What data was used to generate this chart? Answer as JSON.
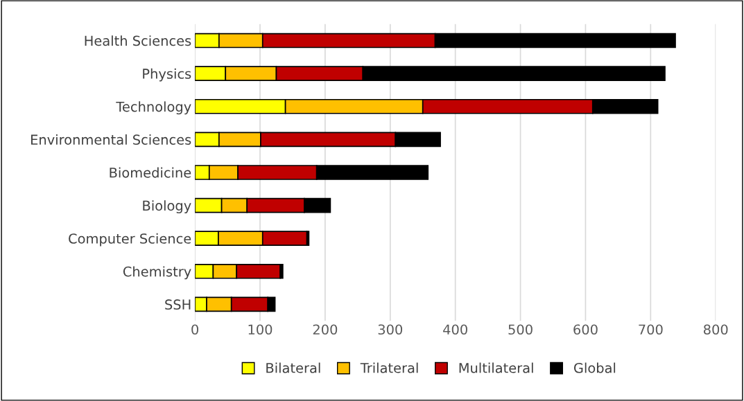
{
  "chart_data": {
    "type": "bar",
    "orientation": "horizontal",
    "stacked": true,
    "categories": [
      "Health Sciences",
      "Physics",
      "Technology",
      "Environmental Sciences",
      "Biomedicine",
      "Biology",
      "Computer Science",
      "Chemistry",
      "SSH"
    ],
    "series": [
      {
        "name": "Bilateral",
        "color": "#ffff00",
        "values": [
          37,
          47,
          139,
          37,
          22,
          41,
          36,
          28,
          18
        ]
      },
      {
        "name": "Trilateral",
        "color": "#ffc000",
        "values": [
          67,
          78,
          211,
          64,
          44,
          39,
          68,
          36,
          38
        ]
      },
      {
        "name": "Multilateral",
        "color": "#c00000",
        "values": [
          265,
          133,
          261,
          207,
          121,
          88,
          68,
          67,
          56
        ]
      },
      {
        "name": "Global",
        "color": "#000000",
        "values": [
          369,
          464,
          100,
          69,
          171,
          40,
          3,
          4,
          11
        ]
      }
    ],
    "xlim": [
      0,
      800
    ],
    "xticks": [
      0,
      100,
      200,
      300,
      400,
      500,
      600,
      700,
      800
    ],
    "grid": "x",
    "legend": "bottom"
  }
}
